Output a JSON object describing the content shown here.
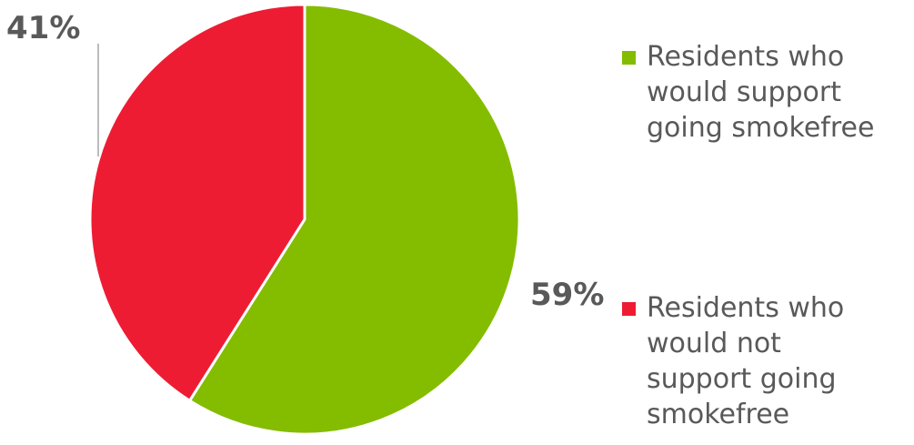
{
  "chart_data": {
    "type": "pie",
    "title": "",
    "series": [
      {
        "name": "Residents who would support going smokefree",
        "value": 59,
        "label": "59%",
        "color": "#84BC00"
      },
      {
        "name": "Residents who would not support going smokefree",
        "value": 41,
        "label": "41%",
        "color": "#EE1C33"
      }
    ],
    "legend_position": "right",
    "leader_line_color": "#A6A6A6",
    "slice_border_color": "#ffffff"
  }
}
